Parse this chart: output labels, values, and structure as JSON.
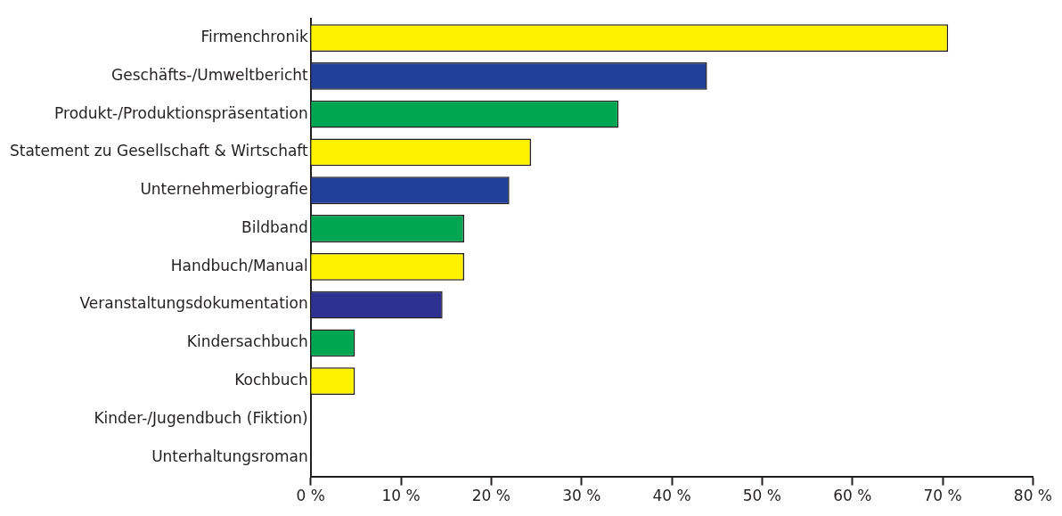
{
  "chart_data": {
    "type": "bar",
    "orientation": "horizontal",
    "categories": [
      "Firmenchronik",
      "Geschäfts-/Umweltbericht",
      "Produkt-/Produktionspräsentation",
      "Statement zu Gesellschaft & Wirtschaft",
      "Unternehmerbiografie",
      "Bildband",
      "Handbuch/Manual",
      "Veranstaltungsdokumentation",
      "Kindersachbuch",
      "Kochbuch",
      "Kinder-/Jugendbuch (Fiktion)",
      "Unterhaltungsroman"
    ],
    "values": [
      70.6,
      43.9,
      34.1,
      24.4,
      22.0,
      17.0,
      17.0,
      14.6,
      4.9,
      4.9,
      0,
      0
    ],
    "colors": [
      "#fff200",
      "#21409a",
      "#00a651",
      "#fff200",
      "#21409a",
      "#00a651",
      "#fff200",
      "#2e3192",
      "#00a651",
      "#fff200",
      "#fff200",
      "#fff200"
    ],
    "xlim": [
      0,
      80
    ],
    "xticks": [
      {
        "value": 0,
        "label": "0 %"
      },
      {
        "value": 10,
        "label": "10 %"
      },
      {
        "value": 20,
        "label": "20 %"
      },
      {
        "value": 30,
        "label": "30 %"
      },
      {
        "value": 40,
        "label": "40 %"
      },
      {
        "value": 50,
        "label": "50 %"
      },
      {
        "value": 60,
        "label": "60 %"
      },
      {
        "value": 70,
        "label": "70 %"
      },
      {
        "value": 80,
        "label": "80 %"
      }
    ],
    "grid": false,
    "legend": false
  }
}
